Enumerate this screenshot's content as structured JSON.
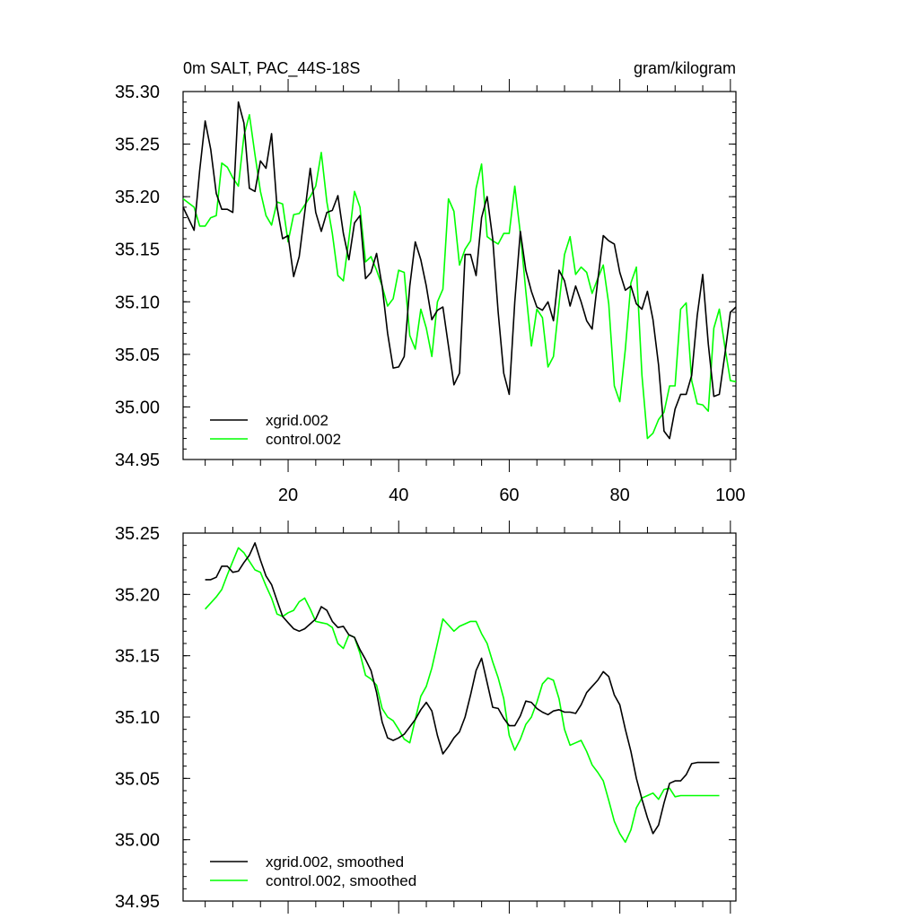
{
  "chart_data": [
    {
      "type": "line",
      "title": "0m SALT, PAC_44S-18S",
      "units": "gram/kilogram",
      "xlim": [
        1,
        101
      ],
      "ylim": [
        34.95,
        35.3
      ],
      "x_ticks": [
        20,
        40,
        60,
        80,
        100
      ],
      "y_ticks": [
        34.95,
        35.0,
        35.05,
        35.1,
        35.15,
        35.2,
        35.25,
        35.3
      ],
      "y_tick_labels": [
        "34.95",
        "35.00",
        "35.05",
        "35.10",
        "35.15",
        "35.20",
        "35.25",
        "35.30"
      ],
      "x_tick_labels": [
        "20",
        "40",
        "60",
        "80",
        "100"
      ],
      "legend": "bottom-left",
      "series": [
        {
          "name": "xgrid.002",
          "color": "#000000",
          "x": [
            1,
            3,
            4,
            5,
            6,
            7,
            8,
            9,
            10,
            11,
            12,
            13,
            14,
            15,
            16,
            17,
            18,
            19,
            20,
            21,
            22,
            24,
            25,
            26,
            27,
            28,
            29,
            30,
            31,
            32,
            33,
            34,
            35,
            36,
            37,
            38,
            39,
            40,
            41,
            42,
            43,
            44,
            45,
            46,
            47,
            48,
            49,
            50,
            51,
            52,
            53,
            54,
            55,
            56,
            57,
            58,
            59,
            60,
            61,
            62,
            63,
            64,
            65,
            66,
            67,
            68,
            69,
            70,
            71,
            72,
            73,
            74,
            75,
            76,
            77,
            78,
            79,
            80,
            81,
            82,
            83,
            84,
            85,
            86,
            87,
            88,
            89,
            90,
            91,
            92,
            93,
            94,
            95,
            96,
            97,
            98,
            99,
            100,
            101
          ],
          "values": [
            35.19,
            35.168,
            35.225,
            35.272,
            35.245,
            35.203,
            35.188,
            35.188,
            35.185,
            35.29,
            35.27,
            35.208,
            35.205,
            35.234,
            35.227,
            35.26,
            35.19,
            35.16,
            35.163,
            35.124,
            35.143,
            35.227,
            35.185,
            35.167,
            35.185,
            35.187,
            35.201,
            35.165,
            35.14,
            35.175,
            35.182,
            35.122,
            35.128,
            35.146,
            35.115,
            35.07,
            35.037,
            35.038,
            35.048,
            35.115,
            35.157,
            35.14,
            35.115,
            35.083,
            35.092,
            35.095,
            35.058,
            35.021,
            35.032,
            35.145,
            35.145,
            35.125,
            35.18,
            35.2,
            35.16,
            35.09,
            35.032,
            35.012,
            35.1,
            35.167,
            35.13,
            35.11,
            35.095,
            35.092,
            35.1,
            35.082,
            35.13,
            35.12,
            35.096,
            35.115,
            35.1,
            35.082,
            35.074,
            35.12,
            35.163,
            35.158,
            35.155,
            35.128,
            35.111,
            35.115,
            35.098,
            35.093,
            35.11,
            35.083,
            35.04,
            34.977,
            34.97,
            34.998,
            35.012,
            35.012,
            35.03,
            35.087,
            35.126,
            35.06,
            35.01,
            35.012,
            35.05,
            35.09,
            35.095
          ]
        },
        {
          "name": "control.002",
          "color": "#00ff00",
          "x": [
            1,
            3,
            4,
            5,
            6,
            7,
            8,
            9,
            10,
            11,
            12,
            13,
            14,
            15,
            16,
            17,
            18,
            19,
            20,
            21,
            22,
            24,
            25,
            26,
            27,
            28,
            29,
            30,
            31,
            32,
            33,
            34,
            35,
            36,
            37,
            38,
            39,
            40,
            41,
            42,
            43,
            44,
            45,
            46,
            47,
            48,
            49,
            50,
            51,
            52,
            53,
            54,
            55,
            56,
            57,
            58,
            59,
            60,
            61,
            62,
            63,
            64,
            65,
            66,
            67,
            68,
            69,
            70,
            71,
            72,
            73,
            74,
            75,
            76,
            77,
            78,
            79,
            80,
            81,
            82,
            83,
            84,
            85,
            86,
            87,
            88,
            89,
            90,
            91,
            92,
            93,
            94,
            95,
            96,
            97,
            98,
            99,
            100,
            101
          ],
          "values": [
            35.198,
            35.19,
            35.172,
            35.172,
            35.18,
            35.182,
            35.232,
            35.228,
            35.218,
            35.21,
            35.258,
            35.278,
            35.24,
            35.205,
            35.182,
            35.173,
            35.195,
            35.193,
            35.157,
            35.183,
            35.184,
            35.2,
            35.21,
            35.242,
            35.195,
            35.165,
            35.125,
            35.12,
            35.16,
            35.205,
            35.19,
            35.138,
            35.143,
            35.13,
            35.115,
            35.096,
            35.103,
            35.13,
            35.128,
            35.068,
            35.055,
            35.093,
            35.075,
            35.048,
            35.1,
            35.112,
            35.198,
            35.186,
            35.135,
            35.15,
            35.158,
            35.208,
            35.231,
            35.162,
            35.158,
            35.155,
            35.165,
            35.165,
            35.21,
            35.165,
            35.11,
            35.058,
            35.093,
            35.085,
            35.038,
            35.048,
            35.098,
            35.145,
            35.162,
            35.126,
            35.133,
            35.128,
            35.108,
            35.122,
            35.135,
            35.098,
            35.02,
            35.005,
            35.055,
            35.118,
            35.133,
            35.03,
            34.97,
            34.975,
            34.988,
            34.995,
            35.02,
            35.02,
            35.093,
            35.099,
            35.025,
            35.003,
            35.002,
            34.996,
            35.075,
            35.093,
            35.057,
            35.025,
            35.024
          ]
        }
      ]
    },
    {
      "type": "line",
      "title": "",
      "xlim": [
        1,
        101
      ],
      "ylim": [
        34.95,
        35.25
      ],
      "x_ticks": [
        20,
        40,
        60,
        80,
        100
      ],
      "y_ticks": [
        34.95,
        35.0,
        35.05,
        35.1,
        35.15,
        35.2,
        35.25
      ],
      "y_tick_labels": [
        "34.95",
        "35.00",
        "35.05",
        "35.10",
        "35.15",
        "35.20",
        "35.25"
      ],
      "legend": "bottom-left",
      "series": [
        {
          "name": "xgrid.002, smoothed",
          "color": "#000000",
          "x": [
            5,
            6,
            7,
            8,
            9,
            10,
            11,
            12,
            13,
            14,
            15,
            16,
            17,
            18,
            19,
            20,
            21,
            22,
            23,
            24,
            25,
            26,
            27,
            28,
            29,
            30,
            31,
            32,
            33,
            34,
            35,
            36,
            37,
            38,
            39,
            40,
            41,
            42,
            43,
            44,
            45,
            46,
            47,
            48,
            49,
            50,
            51,
            52,
            53,
            54,
            55,
            56,
            57,
            58,
            59,
            60,
            61,
            62,
            63,
            64,
            65,
            66,
            67,
            68,
            69,
            70,
            71,
            72,
            73,
            74,
            75,
            76,
            77,
            78,
            79,
            80,
            81,
            82,
            83,
            84,
            85,
            86,
            87,
            88,
            89,
            90,
            91,
            92,
            93,
            94,
            95,
            96,
            97,
            98
          ],
          "values": [
            35.212,
            35.212,
            35.214,
            35.223,
            35.223,
            35.218,
            35.219,
            35.226,
            35.232,
            35.242,
            35.228,
            35.215,
            35.208,
            35.195,
            35.182,
            35.177,
            35.172,
            35.17,
            35.172,
            35.176,
            35.18,
            35.19,
            35.187,
            35.178,
            35.173,
            35.174,
            35.167,
            35.165,
            35.155,
            35.147,
            35.138,
            35.12,
            35.096,
            35.083,
            35.081,
            35.083,
            35.086,
            35.092,
            35.098,
            35.106,
            35.112,
            35.105,
            35.085,
            35.07,
            35.076,
            35.083,
            35.088,
            35.1,
            35.118,
            35.138,
            35.148,
            35.128,
            35.108,
            35.107,
            35.099,
            35.093,
            35.093,
            35.101,
            35.113,
            35.112,
            35.107,
            35.104,
            35.102,
            35.105,
            35.106,
            35.104,
            35.104,
            35.103,
            35.11,
            35.12,
            35.125,
            35.13,
            35.137,
            35.133,
            35.118,
            35.11,
            35.09,
            35.072,
            35.05,
            35.033,
            35.018,
            35.005,
            35.012,
            35.03,
            35.046,
            35.048,
            35.048,
            35.053,
            35.062,
            35.063,
            35.063,
            35.063,
            35.063,
            35.063
          ]
        },
        {
          "name": "control.002, smoothed",
          "color": "#00ff00",
          "x": [
            5,
            6,
            7,
            8,
            9,
            10,
            11,
            12,
            13,
            14,
            15,
            16,
            17,
            18,
            19,
            20,
            21,
            22,
            23,
            24,
            25,
            26,
            27,
            28,
            29,
            30,
            31,
            32,
            33,
            34,
            35,
            36,
            37,
            38,
            39,
            40,
            41,
            42,
            43,
            44,
            45,
            46,
            47,
            48,
            49,
            50,
            51,
            52,
            53,
            54,
            55,
            56,
            57,
            58,
            59,
            60,
            61,
            62,
            63,
            64,
            65,
            66,
            67,
            68,
            69,
            70,
            71,
            72,
            73,
            74,
            75,
            76,
            77,
            78,
            79,
            80,
            81,
            82,
            83,
            84,
            85,
            86,
            87,
            88,
            89,
            90,
            91,
            92,
            93,
            94,
            95,
            96,
            97,
            98
          ],
          "values": [
            35.188,
            35.193,
            35.198,
            35.204,
            35.216,
            35.227,
            35.238,
            35.234,
            35.227,
            35.22,
            35.218,
            35.207,
            35.197,
            35.184,
            35.182,
            35.185,
            35.187,
            35.194,
            35.197,
            35.188,
            35.178,
            35.177,
            35.176,
            35.173,
            35.16,
            35.156,
            35.167,
            35.165,
            35.152,
            35.134,
            35.131,
            35.126,
            35.107,
            35.1,
            35.097,
            35.09,
            35.082,
            35.079,
            35.098,
            35.117,
            35.125,
            35.14,
            35.16,
            35.18,
            35.175,
            35.17,
            35.174,
            35.176,
            35.178,
            35.178,
            35.168,
            35.16,
            35.145,
            35.132,
            35.115,
            35.085,
            35.073,
            35.082,
            35.094,
            35.1,
            35.112,
            35.127,
            35.132,
            35.13,
            35.115,
            35.09,
            35.077,
            35.079,
            35.081,
            35.072,
            35.061,
            35.055,
            35.048,
            35.032,
            35.015,
            35.005,
            34.998,
            35.008,
            35.026,
            35.034,
            35.036,
            35.038,
            35.033,
            35.041,
            35.042,
            35.035,
            35.036,
            35.036,
            35.036,
            35.036,
            35.036,
            35.036,
            35.036,
            35.036
          ]
        }
      ]
    }
  ]
}
